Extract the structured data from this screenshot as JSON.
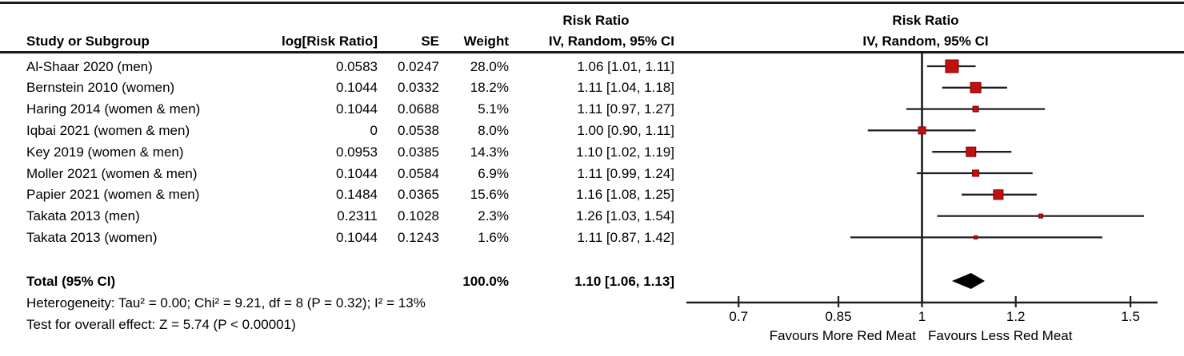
{
  "table": {
    "columns": {
      "study": "Study or Subgroup",
      "log_rr": "log[Risk Ratio]",
      "se": "SE",
      "weight": "Weight",
      "ci_over": "Risk Ratio",
      "ci": "IV, Random, 95% CI"
    },
    "plot_header": {
      "line1": "Risk Ratio",
      "line2": "IV, Random, 95% CI"
    }
  },
  "chart_data": {
    "type": "forest",
    "x_scale": "log",
    "xlim": [
      0.63,
      1.58
    ],
    "axis_tick_values": [
      0.7,
      0.85,
      1,
      1.2,
      1.5
    ],
    "axis_tick_labels": [
      "0.7",
      "0.85",
      "1",
      "1.2",
      "1.5"
    ],
    "favours_left": "Favours More Red Meat",
    "favours_right": "Favours Less Red Meat",
    "marker_color": "#c01010",
    "marker_edge_color": "#7f0000",
    "diamond_color": "#000000",
    "line_color": "#1f1f1f",
    "studies": [
      {
        "name": "Al-Shaar 2020 (men)",
        "log_rr": "0.0583",
        "se": "0.0247",
        "weight": "28.0%",
        "weight_pct": 28.0,
        "rr": 1.06,
        "ci_low": 1.01,
        "ci_high": 1.11,
        "ci_text": "1.06 [1.01, 1.11]"
      },
      {
        "name": "Bernstein 2010 (women)",
        "log_rr": "0.1044",
        "se": "0.0332",
        "weight": "18.2%",
        "weight_pct": 18.2,
        "rr": 1.11,
        "ci_low": 1.04,
        "ci_high": 1.18,
        "ci_text": "1.11 [1.04, 1.18]"
      },
      {
        "name": "Haring 2014 (women & men)",
        "log_rr": "0.1044",
        "se": "0.0688",
        "weight": "5.1%",
        "weight_pct": 5.1,
        "rr": 1.11,
        "ci_low": 0.97,
        "ci_high": 1.27,
        "ci_text": "1.11 [0.97, 1.27]"
      },
      {
        "name": "Iqbai 2021 (women & men)",
        "log_rr": "0",
        "se": "0.0538",
        "weight": "8.0%",
        "weight_pct": 8.0,
        "rr": 1.0,
        "ci_low": 0.9,
        "ci_high": 1.11,
        "ci_text": "1.00 [0.90, 1.11]"
      },
      {
        "name": "Key 2019 (women & men)",
        "log_rr": "0.0953",
        "se": "0.0385",
        "weight": "14.3%",
        "weight_pct": 14.3,
        "rr": 1.1,
        "ci_low": 1.02,
        "ci_high": 1.19,
        "ci_text": "1.10 [1.02, 1.19]"
      },
      {
        "name": "Moller 2021 (women & men)",
        "log_rr": "0.1044",
        "se": "0.0584",
        "weight": "6.9%",
        "weight_pct": 6.9,
        "rr": 1.11,
        "ci_low": 0.99,
        "ci_high": 1.24,
        "ci_text": "1.11 [0.99, 1.24]"
      },
      {
        "name": "Papier 2021 (women & men)",
        "log_rr": "0.1484",
        "se": "0.0365",
        "weight": "15.6%",
        "weight_pct": 15.6,
        "rr": 1.16,
        "ci_low": 1.08,
        "ci_high": 1.25,
        "ci_text": "1.16 [1.08, 1.25]"
      },
      {
        "name": "Takata 2013 (men)",
        "log_rr": "0.2311",
        "se": "0.1028",
        "weight": "2.3%",
        "weight_pct": 2.3,
        "rr": 1.26,
        "ci_low": 1.03,
        "ci_high": 1.54,
        "ci_text": "1.26 [1.03, 1.54]"
      },
      {
        "name": "Takata 2013 (women)",
        "log_rr": "0.1044",
        "se": "0.1243",
        "weight": "1.6%",
        "weight_pct": 1.6,
        "rr": 1.11,
        "ci_low": 0.87,
        "ci_high": 1.42,
        "ci_text": "1.11 [0.87, 1.42]"
      }
    ],
    "total": {
      "label": "Total (95% CI)",
      "weight": "100.0%",
      "rr": 1.1,
      "ci_low": 1.06,
      "ci_high": 1.13,
      "ci_text": "1.10 [1.06, 1.13]"
    },
    "footer": {
      "heterogeneity": "Heterogeneity: Tau² = 0.00; Chi² = 9.21, df = 8 (P = 0.32); I² = 13%",
      "overall_effect": "Test for overall effect: Z = 5.74 (P < 0.00001)"
    }
  }
}
